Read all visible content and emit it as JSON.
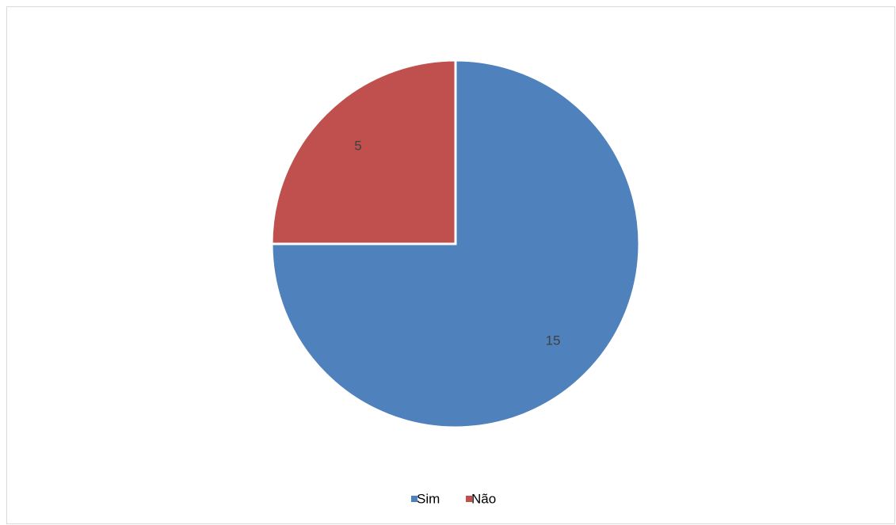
{
  "chart_data": {
    "type": "pie",
    "categories": [
      "Sim",
      "Não"
    ],
    "values": [
      15,
      5
    ],
    "colors": [
      "#4f81bd",
      "#c0504d"
    ],
    "data_labels": [
      "15",
      "5"
    ],
    "start_angle_deg": 0,
    "direction": "clockwise",
    "legend": {
      "position": "bottom",
      "entries": [
        "Sim",
        "Não"
      ]
    }
  }
}
